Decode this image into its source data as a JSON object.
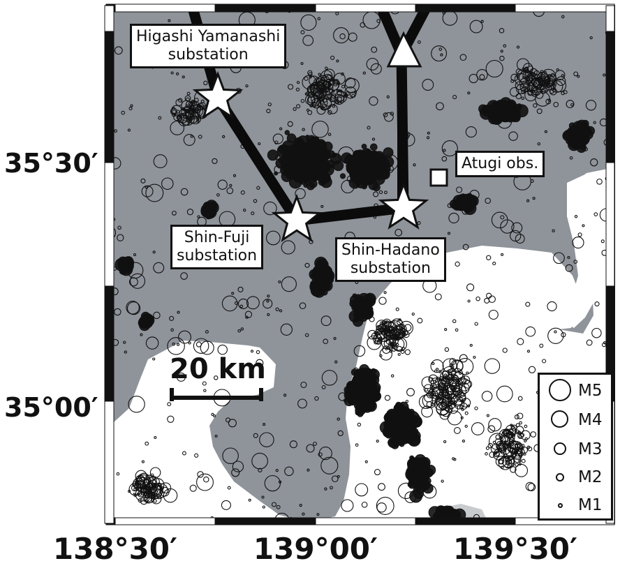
{
  "colors": {
    "land": "#8f939a",
    "sea": "#ffffff",
    "route": "#0b0b0b",
    "frame": "#111111",
    "quake_stroke": "#111111"
  },
  "axes": {
    "lat_labels": [
      "35°30′",
      "35°00′"
    ],
    "lon_labels": [
      "138°30′",
      "139°00′",
      "139°30′"
    ]
  },
  "callouts": {
    "higashi_yamanashi": [
      "Higashi Yamanashi",
      "substation"
    ],
    "shin_fuji": [
      "Shin-Fuji",
      "substation"
    ],
    "shin_hadano": [
      "Shin-Hadano",
      "substation"
    ],
    "atugi": [
      "Atugi obs."
    ]
  },
  "scale_bar": {
    "label": "20 km"
  },
  "legend": {
    "items": [
      "M5",
      "M4",
      "M3",
      "M2",
      "M1"
    ]
  },
  "icons": {
    "substation": "white-star-icon",
    "endpoint": "white-triangle-icon",
    "observatory": "white-square-icon"
  }
}
